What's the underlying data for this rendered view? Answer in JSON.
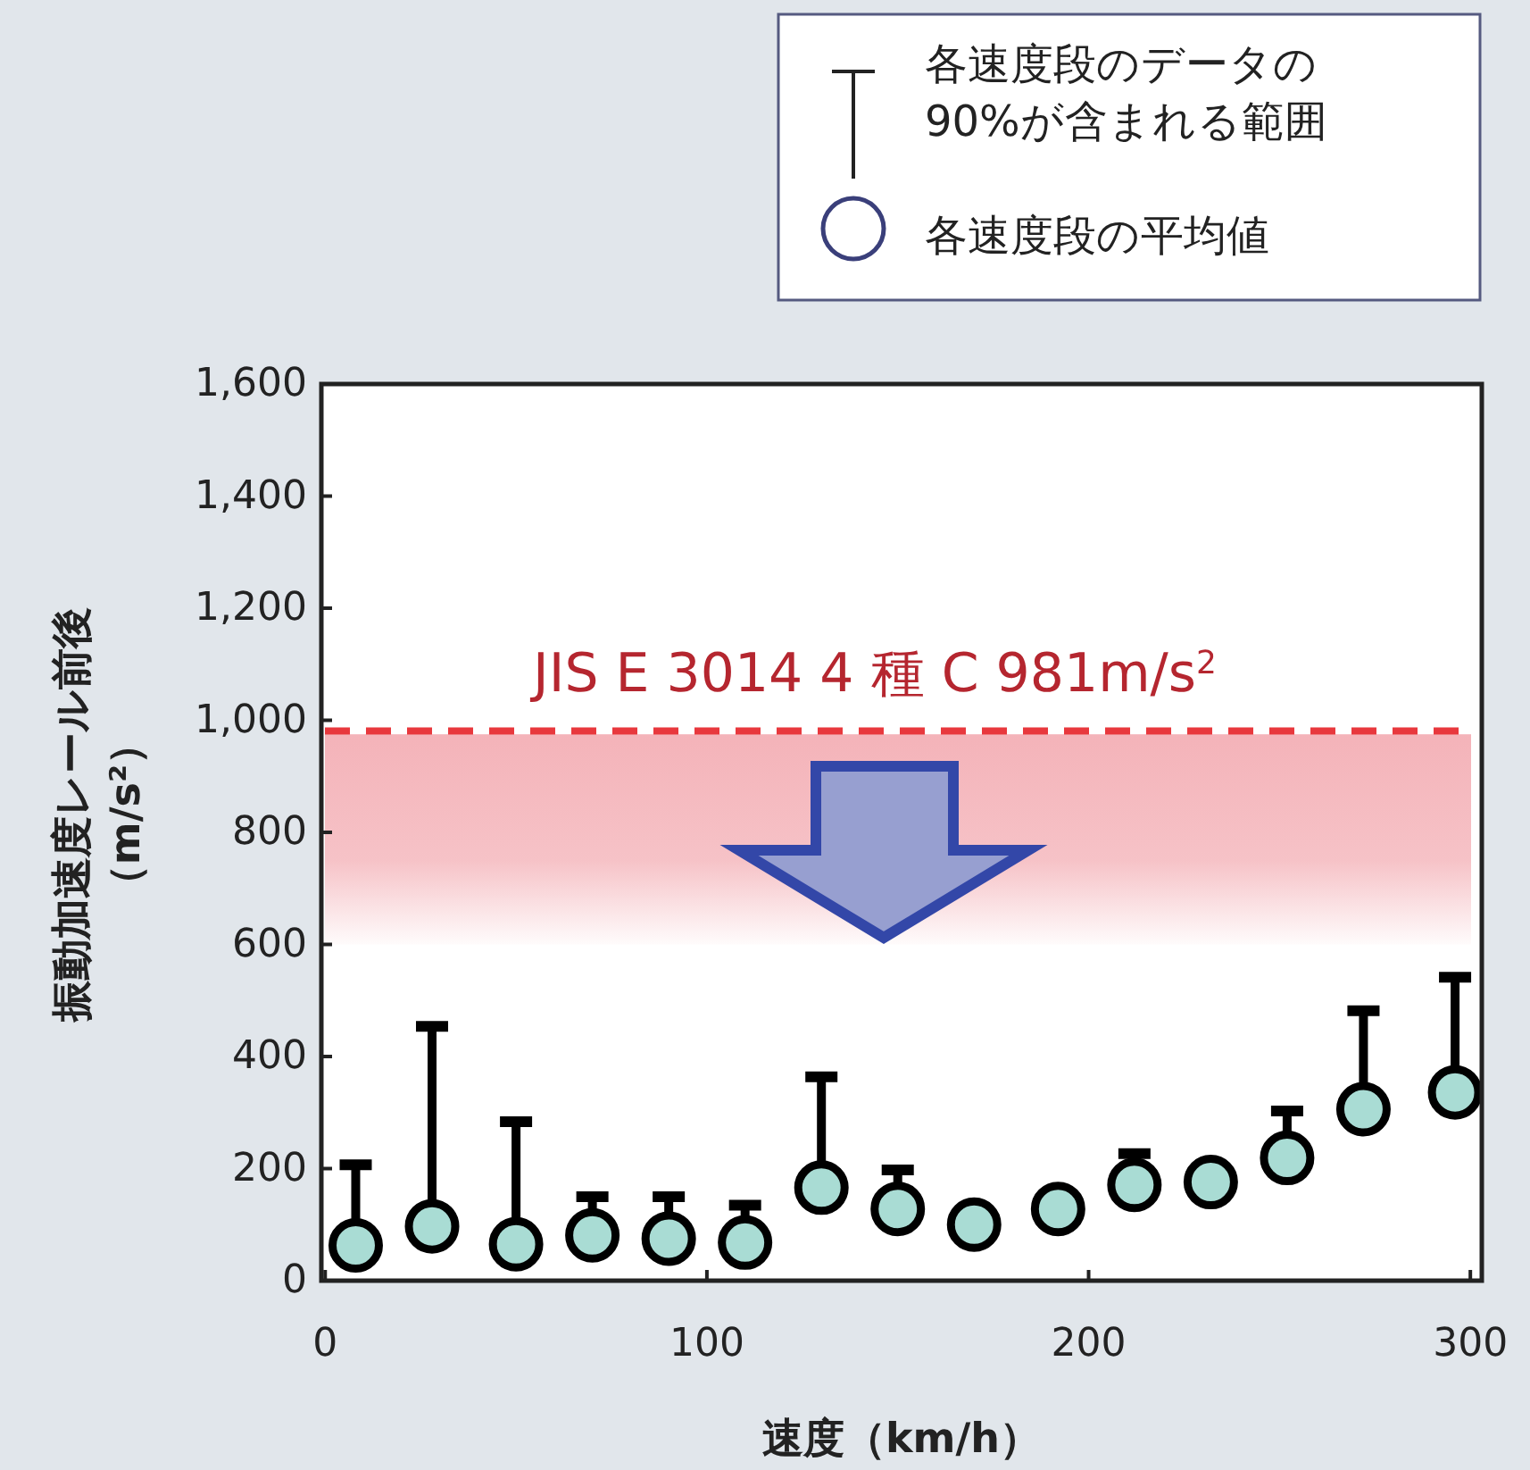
{
  "chart_data": {
    "type": "scatter",
    "xlabel": "速度（km/h）",
    "ylabel": "振動加速度レール前後（m/s²）",
    "x": [
      8,
      28,
      50,
      70,
      90,
      110,
      130,
      150,
      170,
      192,
      212,
      232,
      252,
      272,
      296
    ],
    "series": [
      {
        "name": "各速度段の平均値",
        "color": "#a9dcd4",
        "values": [
          63,
          97,
          65,
          81,
          75,
          68,
          166,
          128,
          100,
          128,
          171,
          176,
          219,
          306,
          336
        ],
        "errors": [
          [
            63,
            213
          ],
          [
            97,
            460
          ],
          [
            65,
            290
          ],
          [
            81,
            156
          ],
          [
            75,
            156
          ],
          [
            68,
            141
          ],
          [
            166,
            370
          ],
          [
            128,
            204
          ],
          null,
          null,
          [
            171,
            233
          ],
          null,
          [
            219,
            309
          ],
          [
            306,
            488
          ],
          [
            336,
            548
          ]
        ]
      }
    ],
    "annotations": [
      "各速度段のデータの\n90%が含まれる範囲"
    ],
    "xlim": [
      -1,
      303
    ],
    "xticks": [
      0,
      100,
      200,
      300
    ],
    "ylim": [
      0,
      1600
    ],
    "yticks": [
      0,
      200,
      400,
      600,
      800,
      {
        "value": 1000,
        "label": "1,000"
      },
      {
        "value": 1200,
        "label": "1,200"
      },
      {
        "value": 1400,
        "label": "1,400"
      },
      {
        "value": 1600,
        "label": "1,600"
      }
    ],
    "ref_lines": [
      {
        "axis": "y",
        "value": 981,
        "label": "JIS E 3014 4 種 C 981m/s$^{2}$",
        "color": "#e8383d",
        "line_style": "dashed"
      }
    ],
    "bands": [
      {
        "axis": "y",
        "from": 600,
        "to": 975,
        "color": "#f4b3b9"
      }
    ],
    "marker": "circle",
    "legend": "top right",
    "grid": false
  }
}
